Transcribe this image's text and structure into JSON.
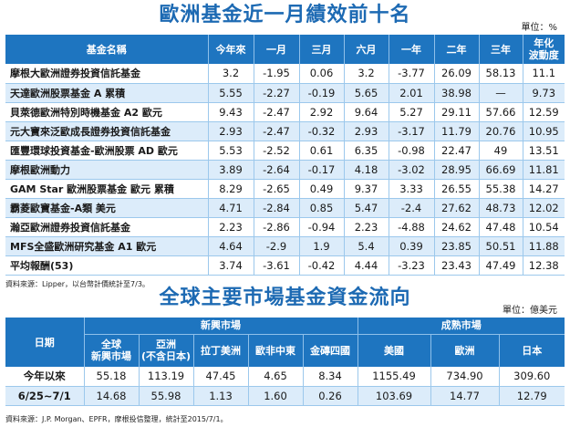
{
  "europe": {
    "title": "歐洲基金近一月績效前十名",
    "unit": "單位：%",
    "headers": [
      "基金名稱",
      "今年來",
      "一月",
      "三月",
      "六月",
      "一年",
      "二年",
      "三年",
      "年化\n波動度"
    ],
    "rows": [
      {
        "name": "摩根大歐洲證券投資信託基金",
        "values": [
          "3.2",
          "-1.95",
          "0.06",
          "3.2",
          "-3.77",
          "26.09",
          "58.13",
          "11.1"
        ]
      },
      {
        "name": "天達歐洲股票基金 A 累積",
        "values": [
          "5.55",
          "-2.27",
          "-0.19",
          "5.65",
          "2.01",
          "38.98",
          "—",
          "9.73"
        ]
      },
      {
        "name": "貝萊德歐洲特別時機基金 A2 歐元",
        "values": [
          "9.43",
          "-2.47",
          "2.92",
          "9.64",
          "5.27",
          "29.11",
          "57.66",
          "12.59"
        ]
      },
      {
        "name": "元大寶來泛歐成長證券投資信託基金",
        "values": [
          "2.93",
          "-2.47",
          "-0.32",
          "2.93",
          "-3.17",
          "11.79",
          "20.76",
          "10.95"
        ]
      },
      {
        "name": "匯豐環球投資基金-歐洲股票 AD 歐元",
        "values": [
          "5.53",
          "-2.52",
          "0.61",
          "6.35",
          "-0.98",
          "22.47",
          "49",
          "13.51"
        ]
      },
      {
        "name": "摩根歐洲動力",
        "values": [
          "3.89",
          "-2.64",
          "-0.17",
          "4.18",
          "-3.02",
          "28.95",
          "66.69",
          "11.81"
        ]
      },
      {
        "name": "GAM Star 歐洲股票基金 歐元 累積",
        "values": [
          "8.29",
          "-2.65",
          "0.49",
          "9.37",
          "3.33",
          "26.55",
          "55.38",
          "14.27"
        ]
      },
      {
        "name": "霸菱歐寶基金-A類 美元",
        "values": [
          "4.71",
          "-2.84",
          "0.85",
          "5.47",
          "-2.4",
          "27.62",
          "48.73",
          "12.02"
        ]
      },
      {
        "name": "瀚亞歐洲證券投資信託基金",
        "values": [
          "2.23",
          "-2.86",
          "-0.94",
          "2.23",
          "-4.88",
          "24.62",
          "47.48",
          "10.54"
        ]
      },
      {
        "name": "MFS全盛歐洲研究基金 A1 歐元",
        "values": [
          "4.64",
          "-2.9",
          "1.9",
          "5.4",
          "0.39",
          "23.85",
          "50.51",
          "11.88"
        ]
      },
      {
        "name": "平均報酬(53)",
        "values": [
          "3.74",
          "-3.61",
          "-0.42",
          "4.44",
          "-3.23",
          "23.43",
          "47.49",
          "12.38"
        ]
      }
    ],
    "source": "資料來源：Lipper，以台幣計價統計至7/3。"
  },
  "flows": {
    "title": "全球主要市場基金資金流向",
    "unit": "單位：億美元",
    "date_header": "日期",
    "emerging_header": "新興市場",
    "developed_header": "成熟市場",
    "sub_headers": [
      "全球\n新興市場",
      "亞洲\n(不含日本)",
      "拉丁美洲",
      "歐非中東",
      "金磚四國",
      "美國",
      "歐洲",
      "日本"
    ],
    "rows": [
      {
        "label": "今年以來",
        "values": [
          "55.18",
          "113.19",
          "47.45",
          "4.65",
          "8.34",
          "1155.49",
          "734.90",
          "309.60"
        ]
      },
      {
        "label": "6/25~7/1",
        "values": [
          "14.68",
          "55.98",
          "1.13",
          "1.60",
          "0.26",
          "103.69",
          "14.77",
          "12.79"
        ]
      }
    ],
    "source": "資料來源：J.P. Morgan、EPFR，摩根投信整理，統計至2015/7/1。"
  }
}
